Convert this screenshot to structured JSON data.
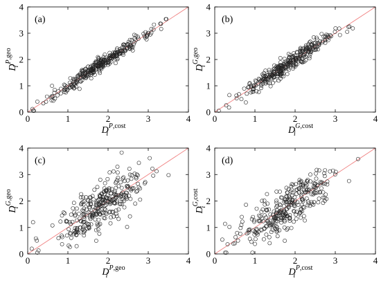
{
  "figure": {
    "panels": [
      {
        "id": "a",
        "label": "(a)",
        "xlabel": {
          "base": "D",
          "sup_italic": "P",
          "sup_rest": ",cost",
          "sub": "i"
        },
        "ylabel": {
          "base": "D",
          "sup_italic": "P",
          "sup_rest": ",geo",
          "sub": "i"
        },
        "spread": 0.12,
        "count": 320
      },
      {
        "id": "b",
        "label": "(b)",
        "xlabel": {
          "base": "D",
          "sup_italic": "G",
          "sup_rest": ",cost",
          "sub": "i"
        },
        "ylabel": {
          "base": "D",
          "sup_italic": "G",
          "sup_rest": ",geo",
          "sub": "i"
        },
        "spread": 0.16,
        "count": 320
      },
      {
        "id": "c",
        "label": "(c)",
        "xlabel": {
          "base": "D",
          "sup_italic": "P",
          "sup_rest": ",geo",
          "sub": "i"
        },
        "ylabel": {
          "base": "D",
          "sup_italic": "G",
          "sup_rest": ",geo",
          "sub": "i"
        },
        "spread": 0.42,
        "count": 320
      },
      {
        "id": "d",
        "label": "(d)",
        "xlabel": {
          "base": "D",
          "sup_italic": "P",
          "sup_rest": ",cost",
          "sub": "i"
        },
        "ylabel": {
          "base": "D",
          "sup_italic": "G",
          "sup_rest": ",cost",
          "sub": "i"
        },
        "spread": 0.42,
        "count": 320
      }
    ]
  },
  "chart_data": [
    {
      "type": "scatter",
      "panel": "(a)",
      "xlim": [
        0,
        4
      ],
      "ylim": [
        0,
        4
      ],
      "xticks": [
        0,
        1,
        2,
        3,
        4
      ],
      "yticks": [
        0,
        1,
        2,
        3,
        4
      ],
      "reference_line": "y = x",
      "colors": {
        "marker": "#222222",
        "line": "#f08080"
      },
      "grid": false
    },
    {
      "type": "scatter",
      "panel": "(b)",
      "xlim": [
        0,
        4
      ],
      "ylim": [
        0,
        4
      ],
      "xticks": [
        0,
        1,
        2,
        3,
        4
      ],
      "yticks": [
        0,
        1,
        2,
        3,
        4
      ],
      "reference_line": "y = x",
      "colors": {
        "marker": "#222222",
        "line": "#f08080"
      },
      "grid": false
    },
    {
      "type": "scatter",
      "panel": "(c)",
      "xlim": [
        0,
        4
      ],
      "ylim": [
        0,
        4
      ],
      "xticks": [
        0,
        1,
        2,
        3,
        4
      ],
      "yticks": [
        0,
        1,
        2,
        3,
        4
      ],
      "reference_line": "y = x",
      "colors": {
        "marker": "#222222",
        "line": "#f08080"
      },
      "grid": false
    },
    {
      "type": "scatter",
      "panel": "(d)",
      "xlim": [
        0,
        4
      ],
      "ylim": [
        0,
        4
      ],
      "xticks": [
        0,
        1,
        2,
        3,
        4
      ],
      "yticks": [
        0,
        1,
        2,
        3,
        4
      ],
      "reference_line": "y = x",
      "colors": {
        "marker": "#222222",
        "line": "#f08080"
      },
      "grid": false
    }
  ]
}
